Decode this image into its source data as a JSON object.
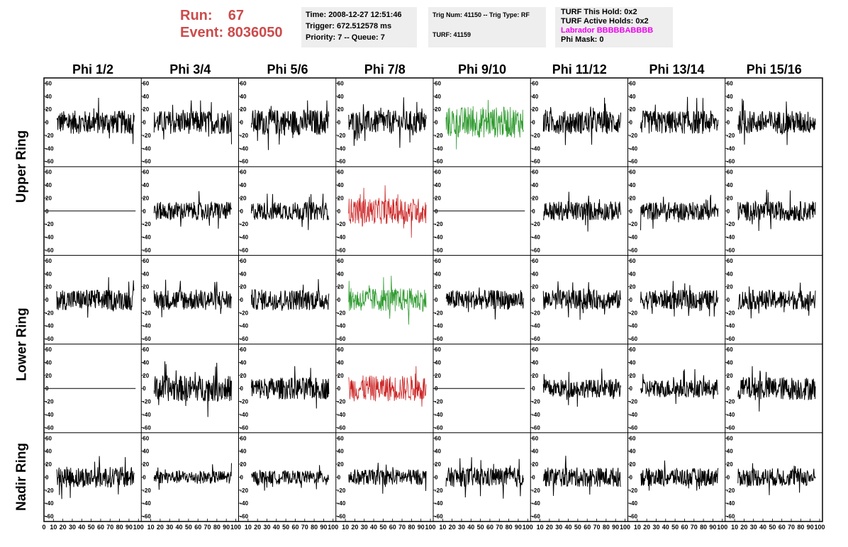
{
  "header": {
    "run_label": "Run:",
    "run_value": "67",
    "event_label": "Event:",
    "event_value": "8036050",
    "time": "Time: 2008-12-27 12:51:46",
    "trigger": "Trigger: 672.512578 ms",
    "priority": "Priority: 7 -- Queue: 7",
    "trig_num": "Trig Num: 41150 -- Trig Type: RF",
    "turf": "TURF: 41159",
    "turf_this_hold": "TURF This Hold: 0x2",
    "turf_active_holds": "TURF Active Holds: 0x2",
    "labrador": "Labrador BBBBBABBBB",
    "phi_mask": "Phi Mask: 0"
  },
  "columns": [
    "Phi 1/2",
    "Phi 3/4",
    "Phi 5/6",
    "Phi 7/8",
    "Phi 9/10",
    "Phi 11/12",
    "Phi 13/14",
    "Phi 15/16"
  ],
  "row_groups": [
    "Upper Ring",
    "Lower Ring",
    "Nadir Ring"
  ],
  "y_ticks": [
    "60",
    "40",
    "20",
    "0",
    "-20",
    "-40",
    "-60"
  ],
  "x_ticks": [
    "0",
    "10",
    "20",
    "30",
    "40",
    "50",
    "60",
    "70",
    "80",
    "90",
    "100"
  ],
  "colors": {
    "normal": "#000000",
    "triggered_green": "#2e9a2e",
    "triggered_red": "#cc2222",
    "title_red": "#cc4b4b",
    "labrador": "#ee00ee"
  },
  "panels": [
    {
      "row": 0,
      "col": 0,
      "color": "normal",
      "amp": 18
    },
    {
      "row": 0,
      "col": 1,
      "color": "normal",
      "amp": 18
    },
    {
      "row": 0,
      "col": 2,
      "color": "normal",
      "amp": 20
    },
    {
      "row": 0,
      "col": 3,
      "color": "normal",
      "amp": 18
    },
    {
      "row": 0,
      "col": 4,
      "color": "triggered_green",
      "amp": 24
    },
    {
      "row": 0,
      "col": 5,
      "color": "normal",
      "amp": 18
    },
    {
      "row": 0,
      "col": 6,
      "color": "normal",
      "amp": 18
    },
    {
      "row": 0,
      "col": 7,
      "color": "normal",
      "amp": 18
    },
    {
      "row": 1,
      "col": 0,
      "color": "normal",
      "amp": 0
    },
    {
      "row": 1,
      "col": 1,
      "color": "normal",
      "amp": 14
    },
    {
      "row": 1,
      "col": 2,
      "color": "normal",
      "amp": 14
    },
    {
      "row": 1,
      "col": 3,
      "color": "triggered_red",
      "amp": 20
    },
    {
      "row": 1,
      "col": 4,
      "color": "normal",
      "amp": 0
    },
    {
      "row": 1,
      "col": 5,
      "color": "normal",
      "amp": 15
    },
    {
      "row": 1,
      "col": 6,
      "color": "normal",
      "amp": 14
    },
    {
      "row": 1,
      "col": 7,
      "color": "normal",
      "amp": 15
    },
    {
      "row": 2,
      "col": 0,
      "color": "normal",
      "amp": 16
    },
    {
      "row": 2,
      "col": 1,
      "color": "normal",
      "amp": 16
    },
    {
      "row": 2,
      "col": 2,
      "color": "normal",
      "amp": 16
    },
    {
      "row": 2,
      "col": 3,
      "color": "triggered_green",
      "amp": 18
    },
    {
      "row": 2,
      "col": 4,
      "color": "normal",
      "amp": 15
    },
    {
      "row": 2,
      "col": 5,
      "color": "normal",
      "amp": 15
    },
    {
      "row": 2,
      "col": 6,
      "color": "normal",
      "amp": 15
    },
    {
      "row": 2,
      "col": 7,
      "color": "normal",
      "amp": 15
    },
    {
      "row": 3,
      "col": 0,
      "color": "normal",
      "amp": 0
    },
    {
      "row": 3,
      "col": 1,
      "color": "normal",
      "amp": 20
    },
    {
      "row": 3,
      "col": 2,
      "color": "normal",
      "amp": 17
    },
    {
      "row": 3,
      "col": 3,
      "color": "triggered_red",
      "amp": 20
    },
    {
      "row": 3,
      "col": 4,
      "color": "normal",
      "amp": 0
    },
    {
      "row": 3,
      "col": 5,
      "color": "normal",
      "amp": 14
    },
    {
      "row": 3,
      "col": 6,
      "color": "normal",
      "amp": 14
    },
    {
      "row": 3,
      "col": 7,
      "color": "normal",
      "amp": 18
    },
    {
      "row": 4,
      "col": 0,
      "color": "normal",
      "amp": 16
    },
    {
      "row": 4,
      "col": 1,
      "color": "normal",
      "amp": 10
    },
    {
      "row": 4,
      "col": 2,
      "color": "normal",
      "amp": 10
    },
    {
      "row": 4,
      "col": 3,
      "color": "normal",
      "amp": 12
    },
    {
      "row": 4,
      "col": 4,
      "color": "normal",
      "amp": 15
    },
    {
      "row": 4,
      "col": 5,
      "color": "normal",
      "amp": 15
    },
    {
      "row": 4,
      "col": 6,
      "color": "normal",
      "amp": 14
    },
    {
      "row": 4,
      "col": 7,
      "color": "normal",
      "amp": 14
    }
  ]
}
